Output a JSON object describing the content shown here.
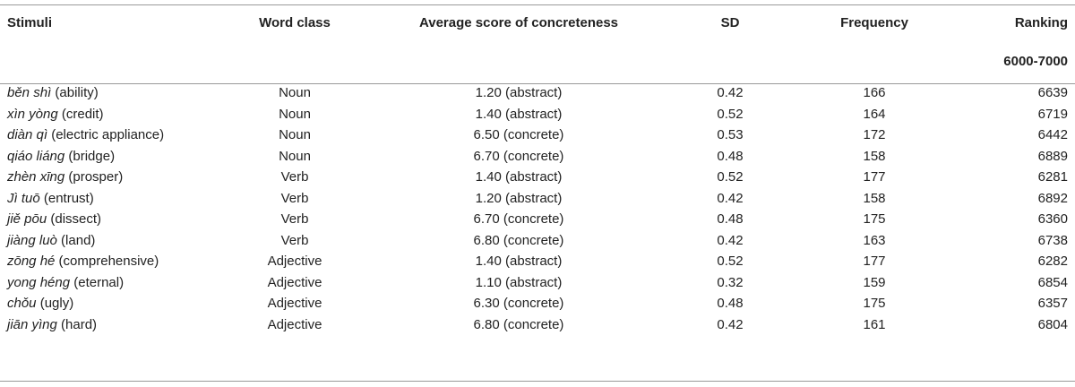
{
  "table": {
    "headers": {
      "stimuli": "Stimuli",
      "word_class": "Word class",
      "avg": "Average score of concreteness",
      "sd": "SD",
      "freq": "Frequency",
      "ranking": "Ranking",
      "ranking_sub": "6000-7000"
    },
    "rows": [
      {
        "pinyin": "běn shì",
        "gloss": " (ability)",
        "word_class": "Noun",
        "avg": "1.20 (abstract)",
        "sd": "0.42",
        "freq": "166",
        "rank": "6639"
      },
      {
        "pinyin": "xìn yòng",
        "gloss": " (credit)",
        "word_class": "Noun",
        "avg": "1.40 (abstract)",
        "sd": "0.52",
        "freq": "164",
        "rank": "6719"
      },
      {
        "pinyin": "diàn qì",
        "gloss": " (electric appliance)",
        "word_class": "Noun",
        "avg": "6.50 (concrete)",
        "sd": "0.53",
        "freq": "172",
        "rank": "6442"
      },
      {
        "pinyin": "qiáo liáng",
        "gloss": " (bridge)",
        "word_class": "Noun",
        "avg": "6.70 (concrete)",
        "sd": "0.48",
        "freq": "158",
        "rank": "6889"
      },
      {
        "pinyin": "zhèn xīng",
        "gloss": " (prosper)",
        "word_class": "Verb",
        "avg": "1.40 (abstract)",
        "sd": "0.52",
        "freq": "177",
        "rank": "6281"
      },
      {
        "pinyin": "Jì tuō",
        "gloss": " (entrust)",
        "word_class": "Verb",
        "avg": "1.20 (abstract)",
        "sd": "0.42",
        "freq": "158",
        "rank": "6892"
      },
      {
        "pinyin": "jiě pōu",
        "gloss": " (dissect)",
        "word_class": "Verb",
        "avg": "6.70 (concrete)",
        "sd": "0.48",
        "freq": "175",
        "rank": "6360"
      },
      {
        "pinyin": "jiàng luò",
        "gloss": " (land)",
        "word_class": "Verb",
        "avg": "6.80 (concrete)",
        "sd": "0.42",
        "freq": "163",
        "rank": "6738"
      },
      {
        "pinyin": "zōng hé",
        "gloss": " (comprehensive)",
        "word_class": "Adjective",
        "avg": "1.40 (abstract)",
        "sd": "0.52",
        "freq": "177",
        "rank": "6282"
      },
      {
        "pinyin": "yong héng",
        "gloss": " (eternal)",
        "word_class": "Adjective",
        "avg": "1.10 (abstract)",
        "sd": "0.32",
        "freq": "159",
        "rank": "6854"
      },
      {
        "pinyin": "chǒu",
        "gloss": " (ugly)",
        "word_class": "Adjective",
        "avg": "6.30 (concrete)",
        "sd": "0.48",
        "freq": "175",
        "rank": "6357"
      },
      {
        "pinyin": "jiān yìng",
        "gloss": " (hard)",
        "word_class": "Adjective",
        "avg": "6.80 (concrete)",
        "sd": "0.42",
        "freq": "161",
        "rank": "6804"
      }
    ]
  }
}
